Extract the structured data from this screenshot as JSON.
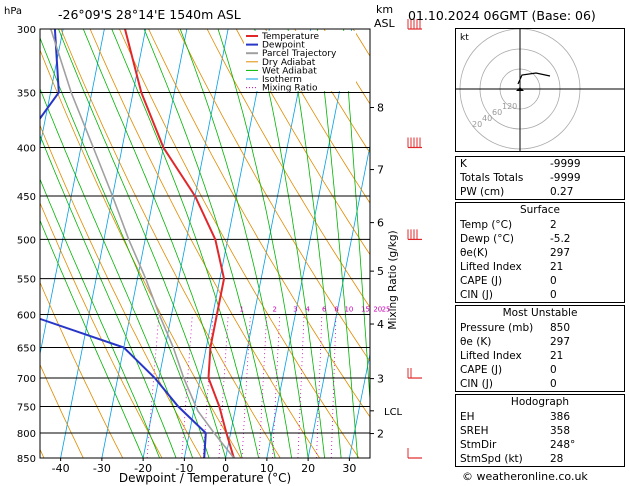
{
  "header": {
    "hpa_label": "hPa",
    "location": "-26°09'S  28°14'E  1540m  ASL",
    "km_label": "km",
    "asl_label": "ASL",
    "datetime": "01.10.2024  06GMT  (Base: 06)"
  },
  "legend": [
    "Temperature",
    "Dewpoint",
    "Parcel Trajectory",
    "Dry Adiabat",
    "Wet Adiabat",
    "Isotherm",
    "Mixing Ratio"
  ],
  "xlabel": "Dewpoint / Temperature (°C)",
  "ylabel": "Mixing Ratio (g/kg)",
  "hodograph": {
    "label": "kt",
    "ring_labels": [
      "20",
      "40",
      "60",
      "120"
    ]
  },
  "indices": [
    {
      "label": "K",
      "value": "-9999"
    },
    {
      "label": "Totals Totals",
      "value": "-9999"
    },
    {
      "label": "PW (cm)",
      "value": "0.27"
    }
  ],
  "surface": {
    "title": "Surface",
    "rows": [
      {
        "label": "Temp (°C)",
        "value": "2"
      },
      {
        "label": "Dewp (°C)",
        "value": "-5.2"
      },
      {
        "label": "θe(K)",
        "value": "297"
      },
      {
        "label": "Lifted Index",
        "value": "21"
      },
      {
        "label": "CAPE (J)",
        "value": "0"
      },
      {
        "label": "CIN (J)",
        "value": "0"
      }
    ]
  },
  "unstable": {
    "title": "Most Unstable",
    "rows": [
      {
        "label": "Pressure (mb)",
        "value": "850"
      },
      {
        "label": "θe (K)",
        "value": "297"
      },
      {
        "label": "Lifted Index",
        "value": "21"
      },
      {
        "label": "CAPE (J)",
        "value": "0"
      },
      {
        "label": "CIN (J)",
        "value": "0"
      }
    ]
  },
  "hodo_table": {
    "title": "Hodograph",
    "rows": [
      {
        "label": "EH",
        "value": "386"
      },
      {
        "label": "SREH",
        "value": "358"
      },
      {
        "label": "StmDir",
        "value": "248°"
      },
      {
        "label": "StmSpd (kt)",
        "value": "28"
      }
    ]
  },
  "footer": "© weatheronline.co.uk",
  "colors": {
    "temperature": "#e0282b",
    "dewpoint": "#2836c8",
    "parcel": "#a0a0a0",
    "dry_adiabat": "#e08c00",
    "wet_adiabat": "#00b400",
    "isotherm": "#00a0e6",
    "mixing_ratio": "#c800b4",
    "wind": "#e0282b"
  },
  "chart_data": {
    "type": "line",
    "title": "",
    "xlabel": "Dewpoint / Temperature (°C)",
    "ylabel": "hPa",
    "xlim": [
      -45,
      35
    ],
    "ylim": [
      850,
      300
    ],
    "pressure_ticks": [
      300,
      350,
      400,
      450,
      500,
      550,
      600,
      650,
      700,
      750,
      800,
      850
    ],
    "x_ticks": [
      -40,
      -30,
      -20,
      -10,
      0,
      10,
      20,
      30
    ],
    "km_ticks": [
      {
        "label": "8",
        "p": 363
      },
      {
        "label": "7",
        "p": 422
      },
      {
        "label": "6",
        "p": 480
      },
      {
        "label": "5",
        "p": 540
      },
      {
        "label": "4",
        "p": 614
      },
      {
        "label": "3",
        "p": 701
      },
      {
        "label": "2",
        "p": 801
      }
    ],
    "lcl": {
      "label": "LCL",
      "p": 758
    },
    "mixing_ratio_labels": [
      {
        "label": "1",
        "t": -3
      },
      {
        "label": "2",
        "t": 5
      },
      {
        "label": "3",
        "t": 10
      },
      {
        "label": "4",
        "t": 13
      },
      {
        "label": "6",
        "t": 17
      },
      {
        "label": "8",
        "t": 20
      },
      {
        "label": "10",
        "t": 23
      },
      {
        "label": "15",
        "t": 27
      },
      {
        "label": "20",
        "t": 30
      },
      {
        "label": "25",
        "t": 32
      }
    ],
    "series": [
      {
        "name": "Temperature",
        "points": [
          [
            850,
            2
          ],
          [
            800,
            -1
          ],
          [
            750,
            -4
          ],
          [
            700,
            -8
          ],
          [
            650,
            -9
          ],
          [
            600,
            -9
          ],
          [
            550,
            -9
          ],
          [
            500,
            -13
          ],
          [
            450,
            -20
          ],
          [
            400,
            -30
          ],
          [
            350,
            -38
          ],
          [
            300,
            -45
          ]
        ]
      },
      {
        "name": "Dewpoint",
        "points": [
          [
            850,
            -5.2
          ],
          [
            800,
            -6
          ],
          [
            750,
            -14
          ],
          [
            700,
            -21
          ],
          [
            650,
            -30
          ],
          [
            600,
            -55
          ],
          [
            550,
            -57
          ],
          [
            500,
            -62
          ],
          [
            450,
            -68
          ],
          [
            400,
            -65
          ],
          [
            350,
            -58
          ],
          [
            300,
            -62
          ]
        ]
      },
      {
        "name": "Parcel Trajectory",
        "points": [
          [
            850,
            2
          ],
          [
            800,
            -4
          ],
          [
            758,
            -9
          ],
          [
            700,
            -14
          ],
          [
            650,
            -18
          ],
          [
            600,
            -23
          ],
          [
            550,
            -28
          ],
          [
            500,
            -34
          ],
          [
            450,
            -40
          ],
          [
            400,
            -47
          ],
          [
            350,
            -55
          ],
          [
            300,
            -63
          ]
        ]
      }
    ],
    "wind_barbs": [
      {
        "p": 300,
        "speed": 65
      },
      {
        "p": 400,
        "speed": 45
      },
      {
        "p": 500,
        "speed": 35
      },
      {
        "p": 700,
        "speed": 15
      },
      {
        "p": 850,
        "speed": 5
      }
    ]
  }
}
